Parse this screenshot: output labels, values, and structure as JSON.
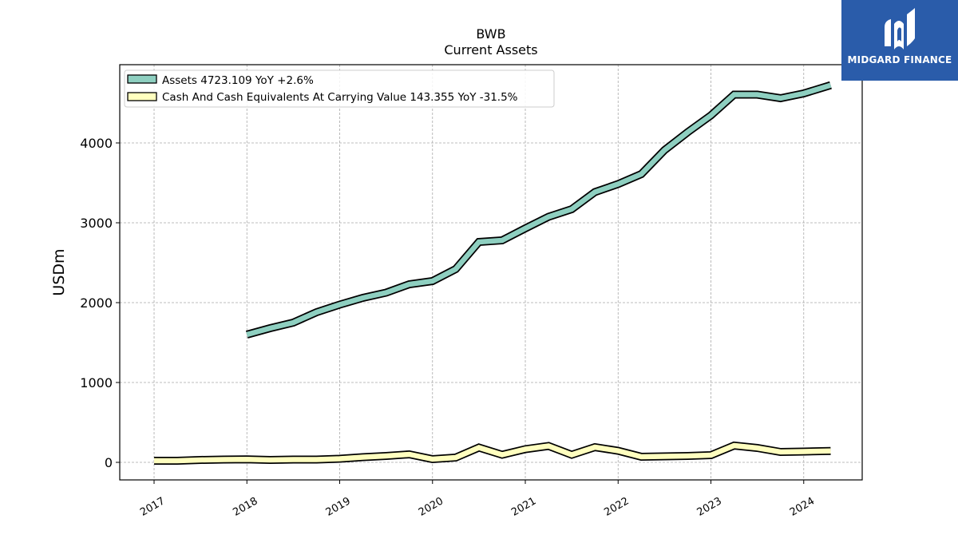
{
  "logo": {
    "text": "MIDGARD FINANCE"
  },
  "chart_data": {
    "type": "line",
    "title": "BWB",
    "subtitle": "Current  Assets",
    "xlabel": "",
    "ylabel": "USDm",
    "xlim": [
      2016.63,
      2024.63
    ],
    "ylim": [
      -220,
      4980
    ],
    "x_ticks": [
      2017,
      2018,
      2019,
      2020,
      2021,
      2022,
      2023,
      2024
    ],
    "y_ticks": [
      0,
      1000,
      2000,
      3000,
      4000
    ],
    "grid": true,
    "legend_position": "top-left",
    "series": [
      {
        "name": "Assets  4723.109 YoY +2.6%",
        "color": "#8ecfc0",
        "x": [
          2018.0,
          2018.25,
          2018.5,
          2018.75,
          2019.0,
          2019.25,
          2019.5,
          2019.75,
          2020.0,
          2020.25,
          2020.5,
          2020.75,
          2021.0,
          2021.25,
          2021.5,
          2021.75,
          2022.0,
          2022.25,
          2022.5,
          2022.75,
          2023.0,
          2023.25,
          2023.5,
          2023.75,
          2024.0,
          2024.29
        ],
        "y": [
          1600,
          1680,
          1750,
          1880,
          1975,
          2060,
          2125,
          2230,
          2270,
          2420,
          2760,
          2780,
          2930,
          3075,
          3170,
          3385,
          3485,
          3610,
          3910,
          4135,
          4345,
          4605,
          4605,
          4560,
          4620,
          4723
        ]
      },
      {
        "name": "Cash And Cash Equivalents At Carrying Value  143.355 YoY -31.5%",
        "color": "#ffffbf",
        "x": [
          2017.0,
          2017.25,
          2017.5,
          2017.75,
          2018.0,
          2018.25,
          2018.5,
          2018.75,
          2019.0,
          2019.25,
          2019.5,
          2019.75,
          2020.0,
          2020.25,
          2020.5,
          2020.75,
          2021.0,
          2021.25,
          2021.5,
          2021.75,
          2022.0,
          2022.25,
          2022.5,
          2022.75,
          2023.0,
          2023.25,
          2023.5,
          2023.75,
          2024.0,
          2024.29
        ],
        "y": [
          20,
          20,
          30,
          35,
          38,
          30,
          35,
          35,
          45,
          65,
          80,
          100,
          40,
          60,
          185,
          95,
          165,
          205,
          95,
          190,
          145,
          70,
          75,
          80,
          90,
          210,
          180,
          130,
          135,
          143
        ]
      }
    ]
  }
}
